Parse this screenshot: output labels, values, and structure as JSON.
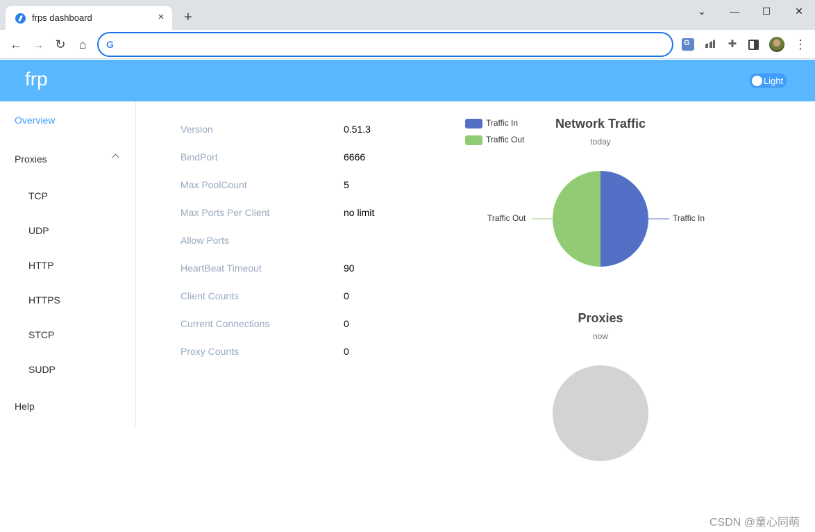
{
  "browser": {
    "tab_title": "frps dashboard",
    "tab_close": "×",
    "new_tab": "+",
    "address_value": "",
    "window": {
      "chevron": "⌄",
      "minimize": "—",
      "maximize": "☐",
      "close": "✕"
    },
    "nav": {
      "back": "←",
      "forward": "→",
      "reload": "↻",
      "home": "⌂"
    },
    "google_g": "G",
    "kebab": "⋮"
  },
  "header": {
    "brand": "frp",
    "theme_label": "Light",
    "colors": {
      "header_bg": "#58b7ff",
      "accent": "#409eff"
    }
  },
  "sidebar": {
    "overview": "Overview",
    "proxies": "Proxies",
    "subitems": [
      "TCP",
      "UDP",
      "HTTP",
      "HTTPS",
      "STCP",
      "SUDP"
    ],
    "help": "Help"
  },
  "overview": {
    "rows": [
      {
        "label": "Version",
        "value": "0.51.3"
      },
      {
        "label": "BindPort",
        "value": "6666"
      },
      {
        "label": "Max PoolCount",
        "value": "5"
      },
      {
        "label": "Max Ports Per Client",
        "value": "no limit"
      },
      {
        "label": "Allow Ports",
        "value": ""
      },
      {
        "label": "HeartBeat Timeout",
        "value": "90"
      },
      {
        "label": "Client Counts",
        "value": "0"
      },
      {
        "label": "Current Connections",
        "value": "0"
      },
      {
        "label": "Proxy Counts",
        "value": "0"
      }
    ]
  },
  "chart_data": [
    {
      "type": "pie",
      "title": "Network Traffic",
      "subtitle": "today",
      "legend_position": "top-left",
      "categories": [
        "Traffic In",
        "Traffic Out"
      ],
      "values": [
        50,
        50
      ],
      "colors": [
        "#5470c6",
        "#91cc75"
      ]
    },
    {
      "type": "pie",
      "title": "Proxies",
      "subtitle": "now",
      "categories": [],
      "values": [],
      "empty_color": "#d3d3d3"
    }
  ],
  "watermark": "CSDN @童心同萌"
}
